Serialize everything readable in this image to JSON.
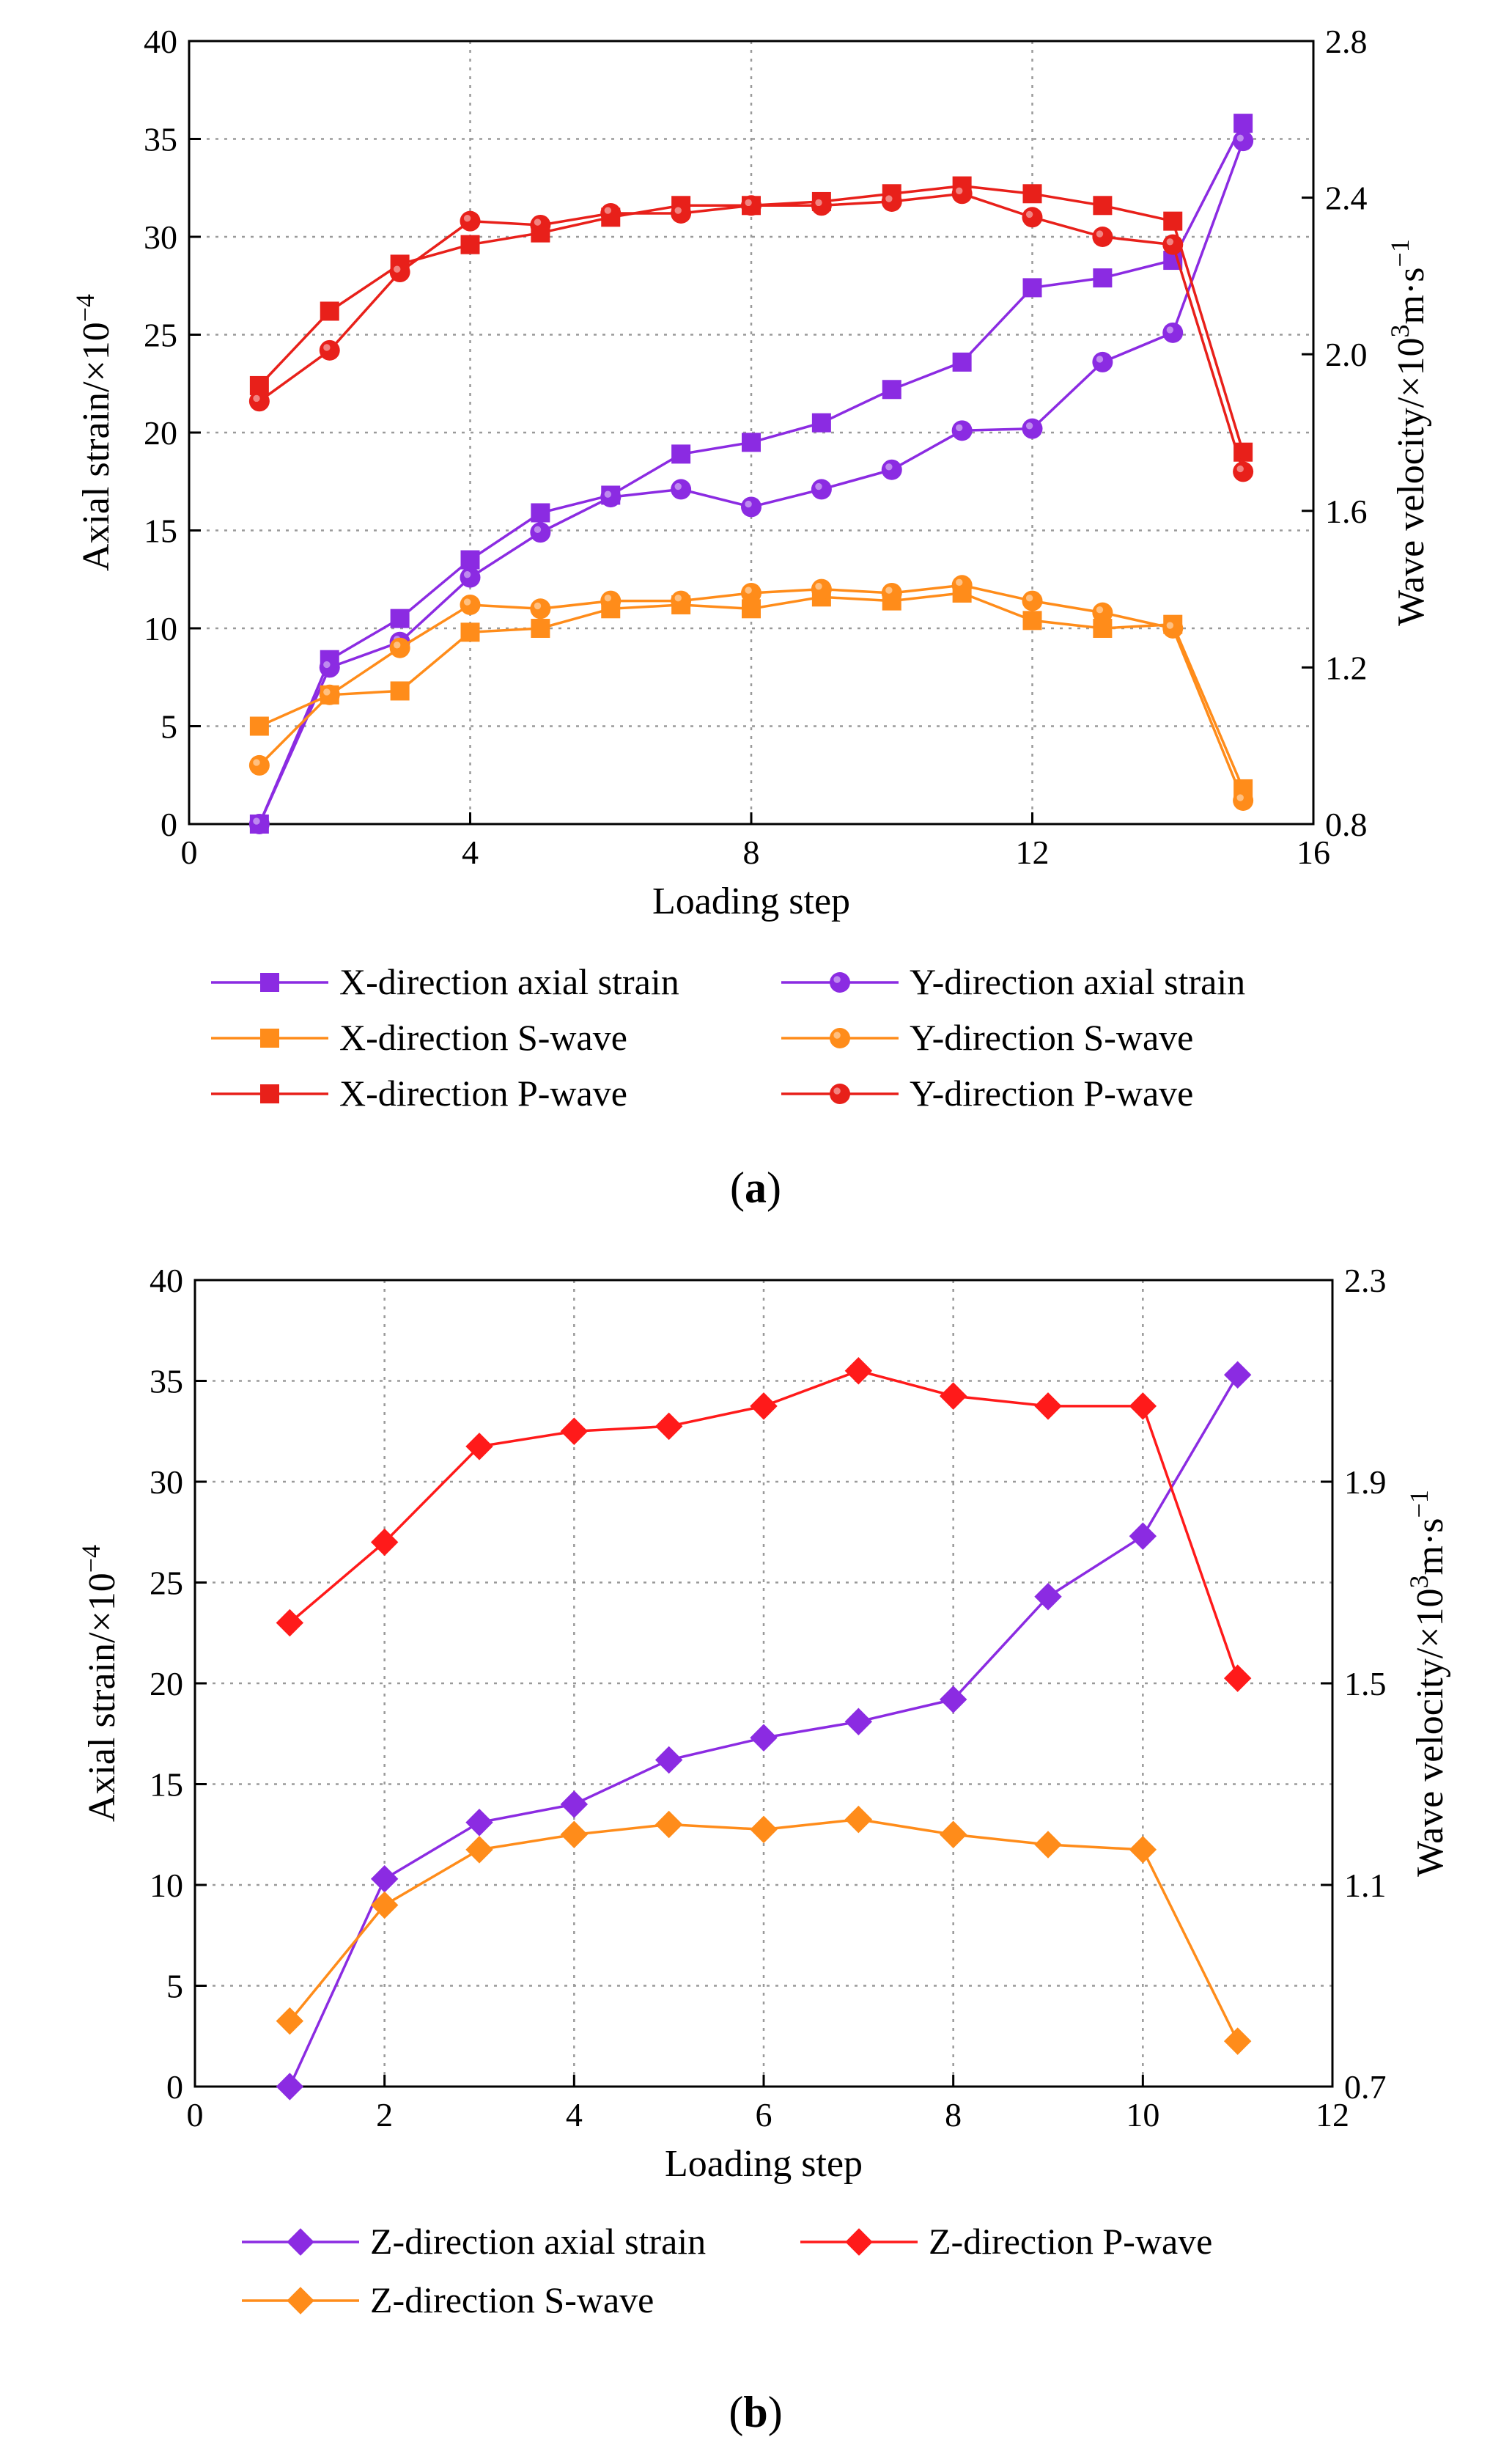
{
  "figure_a": {
    "caption_label": "a",
    "chart_data": {
      "type": "line",
      "xlabel": "Loading step",
      "ylabel": "Axial strain/×10",
      "ylabel_exponent": "−4",
      "y2label": "Wave velocity/×10",
      "y2label_exponent": "3",
      "y2label_unit": "m·s",
      "y2label_unit_exponent": "−1",
      "xlim": [
        0,
        16
      ],
      "ylim": [
        0,
        40
      ],
      "y2lim": [
        0.8,
        2.8
      ],
      "xticks": [
        "0",
        "4",
        "8",
        "12",
        "16"
      ],
      "yticks": [
        "0",
        "5",
        "10",
        "15",
        "20",
        "25",
        "30",
        "35",
        "40"
      ],
      "y2ticks": [
        "0.8",
        "1.2",
        "1.6",
        "2.0",
        "2.4",
        "2.8"
      ],
      "grid": true,
      "legend_position": "bottom",
      "series": [
        {
          "name": "X-direction axial strain",
          "axis": "left",
          "color": "#8b2be2",
          "marker": "square",
          "x": [
            1,
            2,
            3,
            4,
            5,
            6,
            7,
            8,
            9,
            10,
            11,
            12,
            13,
            14,
            15
          ],
          "y": [
            0,
            8.4,
            10.5,
            13.5,
            15.9,
            16.8,
            18.9,
            19.5,
            20.5,
            22.2,
            23.6,
            27.4,
            27.9,
            28.8,
            35.8
          ]
        },
        {
          "name": "Y-direction axial strain",
          "axis": "left",
          "color": "#8b2be2",
          "marker": "circle",
          "x": [
            1,
            2,
            3,
            4,
            5,
            6,
            7,
            8,
            9,
            10,
            11,
            12,
            13,
            14,
            15
          ],
          "y": [
            0,
            8.0,
            9.3,
            12.6,
            14.9,
            16.7,
            17.1,
            16.2,
            17.1,
            18.1,
            20.1,
            20.2,
            23.6,
            25.1,
            34.9
          ]
        },
        {
          "name": "X-direction S-wave",
          "axis": "right",
          "color": "#ff8c1a",
          "marker": "square",
          "x": [
            1,
            2,
            3,
            4,
            5,
            6,
            7,
            8,
            9,
            10,
            11,
            12,
            13,
            14,
            15
          ],
          "y": [
            1.05,
            1.13,
            1.14,
            1.29,
            1.3,
            1.35,
            1.36,
            1.35,
            1.38,
            1.37,
            1.39,
            1.32,
            1.3,
            1.31,
            0.89
          ]
        },
        {
          "name": "Y-direction S-wave",
          "axis": "right",
          "color": "#ff8c1a",
          "marker": "circle",
          "x": [
            1,
            2,
            3,
            4,
            5,
            6,
            7,
            8,
            9,
            10,
            11,
            12,
            13,
            14,
            15
          ],
          "y": [
            0.95,
            1.13,
            1.25,
            1.36,
            1.35,
            1.37,
            1.37,
            1.39,
            1.4,
            1.39,
            1.41,
            1.37,
            1.34,
            1.3,
            0.86
          ]
        },
        {
          "name": "X-direction P-wave",
          "axis": "right",
          "color": "#e8201a",
          "marker": "square",
          "x": [
            1,
            2,
            3,
            4,
            5,
            6,
            7,
            8,
            9,
            10,
            11,
            12,
            13,
            14,
            15
          ],
          "y": [
            1.92,
            2.11,
            2.23,
            2.28,
            2.31,
            2.35,
            2.38,
            2.38,
            2.39,
            2.41,
            2.43,
            2.41,
            2.38,
            2.34,
            1.75
          ]
        },
        {
          "name": "Y-direction P-wave",
          "axis": "right",
          "color": "#e8201a",
          "marker": "circle",
          "x": [
            1,
            2,
            3,
            4,
            5,
            6,
            7,
            8,
            9,
            10,
            11,
            12,
            13,
            14,
            15
          ],
          "y": [
            1.88,
            2.01,
            2.21,
            2.34,
            2.33,
            2.36,
            2.36,
            2.38,
            2.38,
            2.39,
            2.41,
            2.35,
            2.3,
            2.28,
            1.7
          ]
        }
      ]
    }
  },
  "figure_b": {
    "caption_label": "b",
    "chart_data": {
      "type": "line",
      "xlabel": "Loading step",
      "ylabel": "Axial strain/×10",
      "ylabel_exponent": "−4",
      "y2label": "Wave velocity/×10",
      "y2label_exponent": "3",
      "y2label_unit": "m·s",
      "y2label_unit_exponent": "−1",
      "xlim": [
        0,
        12
      ],
      "ylim": [
        0,
        40
      ],
      "y2lim": [
        0.7,
        2.3
      ],
      "xticks": [
        "0",
        "2",
        "4",
        "6",
        "8",
        "10",
        "12"
      ],
      "yticks": [
        "0",
        "5",
        "10",
        "15",
        "20",
        "25",
        "30",
        "35",
        "40"
      ],
      "y2ticks": [
        "0.7",
        "1.1",
        "1.5",
        "1.9",
        "2.3"
      ],
      "grid": true,
      "legend_position": "bottom",
      "series": [
        {
          "name": "Z-direction axial strain",
          "axis": "left",
          "color": "#8b2be2",
          "marker": "diamond",
          "x": [
            1,
            2,
            3,
            4,
            5,
            6,
            7,
            8,
            9,
            10,
            11
          ],
          "y": [
            0,
            10.3,
            13.1,
            14.0,
            16.2,
            17.3,
            18.1,
            19.2,
            24.3,
            27.3,
            35.3
          ]
        },
        {
          "name": "Z-direction P-wave",
          "axis": "right",
          "color": "#ff1a1a",
          "marker": "diamond",
          "x": [
            1,
            2,
            3,
            4,
            5,
            6,
            7,
            8,
            9,
            10,
            11
          ],
          "y": [
            1.62,
            1.78,
            1.97,
            2.0,
            2.01,
            2.05,
            2.12,
            2.07,
            2.05,
            2.05,
            1.51
          ]
        },
        {
          "name": "Z-direction S-wave",
          "axis": "right",
          "color": "#ff8c1a",
          "marker": "diamond",
          "x": [
            1,
            2,
            3,
            4,
            5,
            6,
            7,
            8,
            9,
            10,
            11
          ],
          "y": [
            0.83,
            1.06,
            1.17,
            1.2,
            1.22,
            1.21,
            1.23,
            1.2,
            1.18,
            1.17,
            0.79
          ]
        }
      ]
    }
  }
}
